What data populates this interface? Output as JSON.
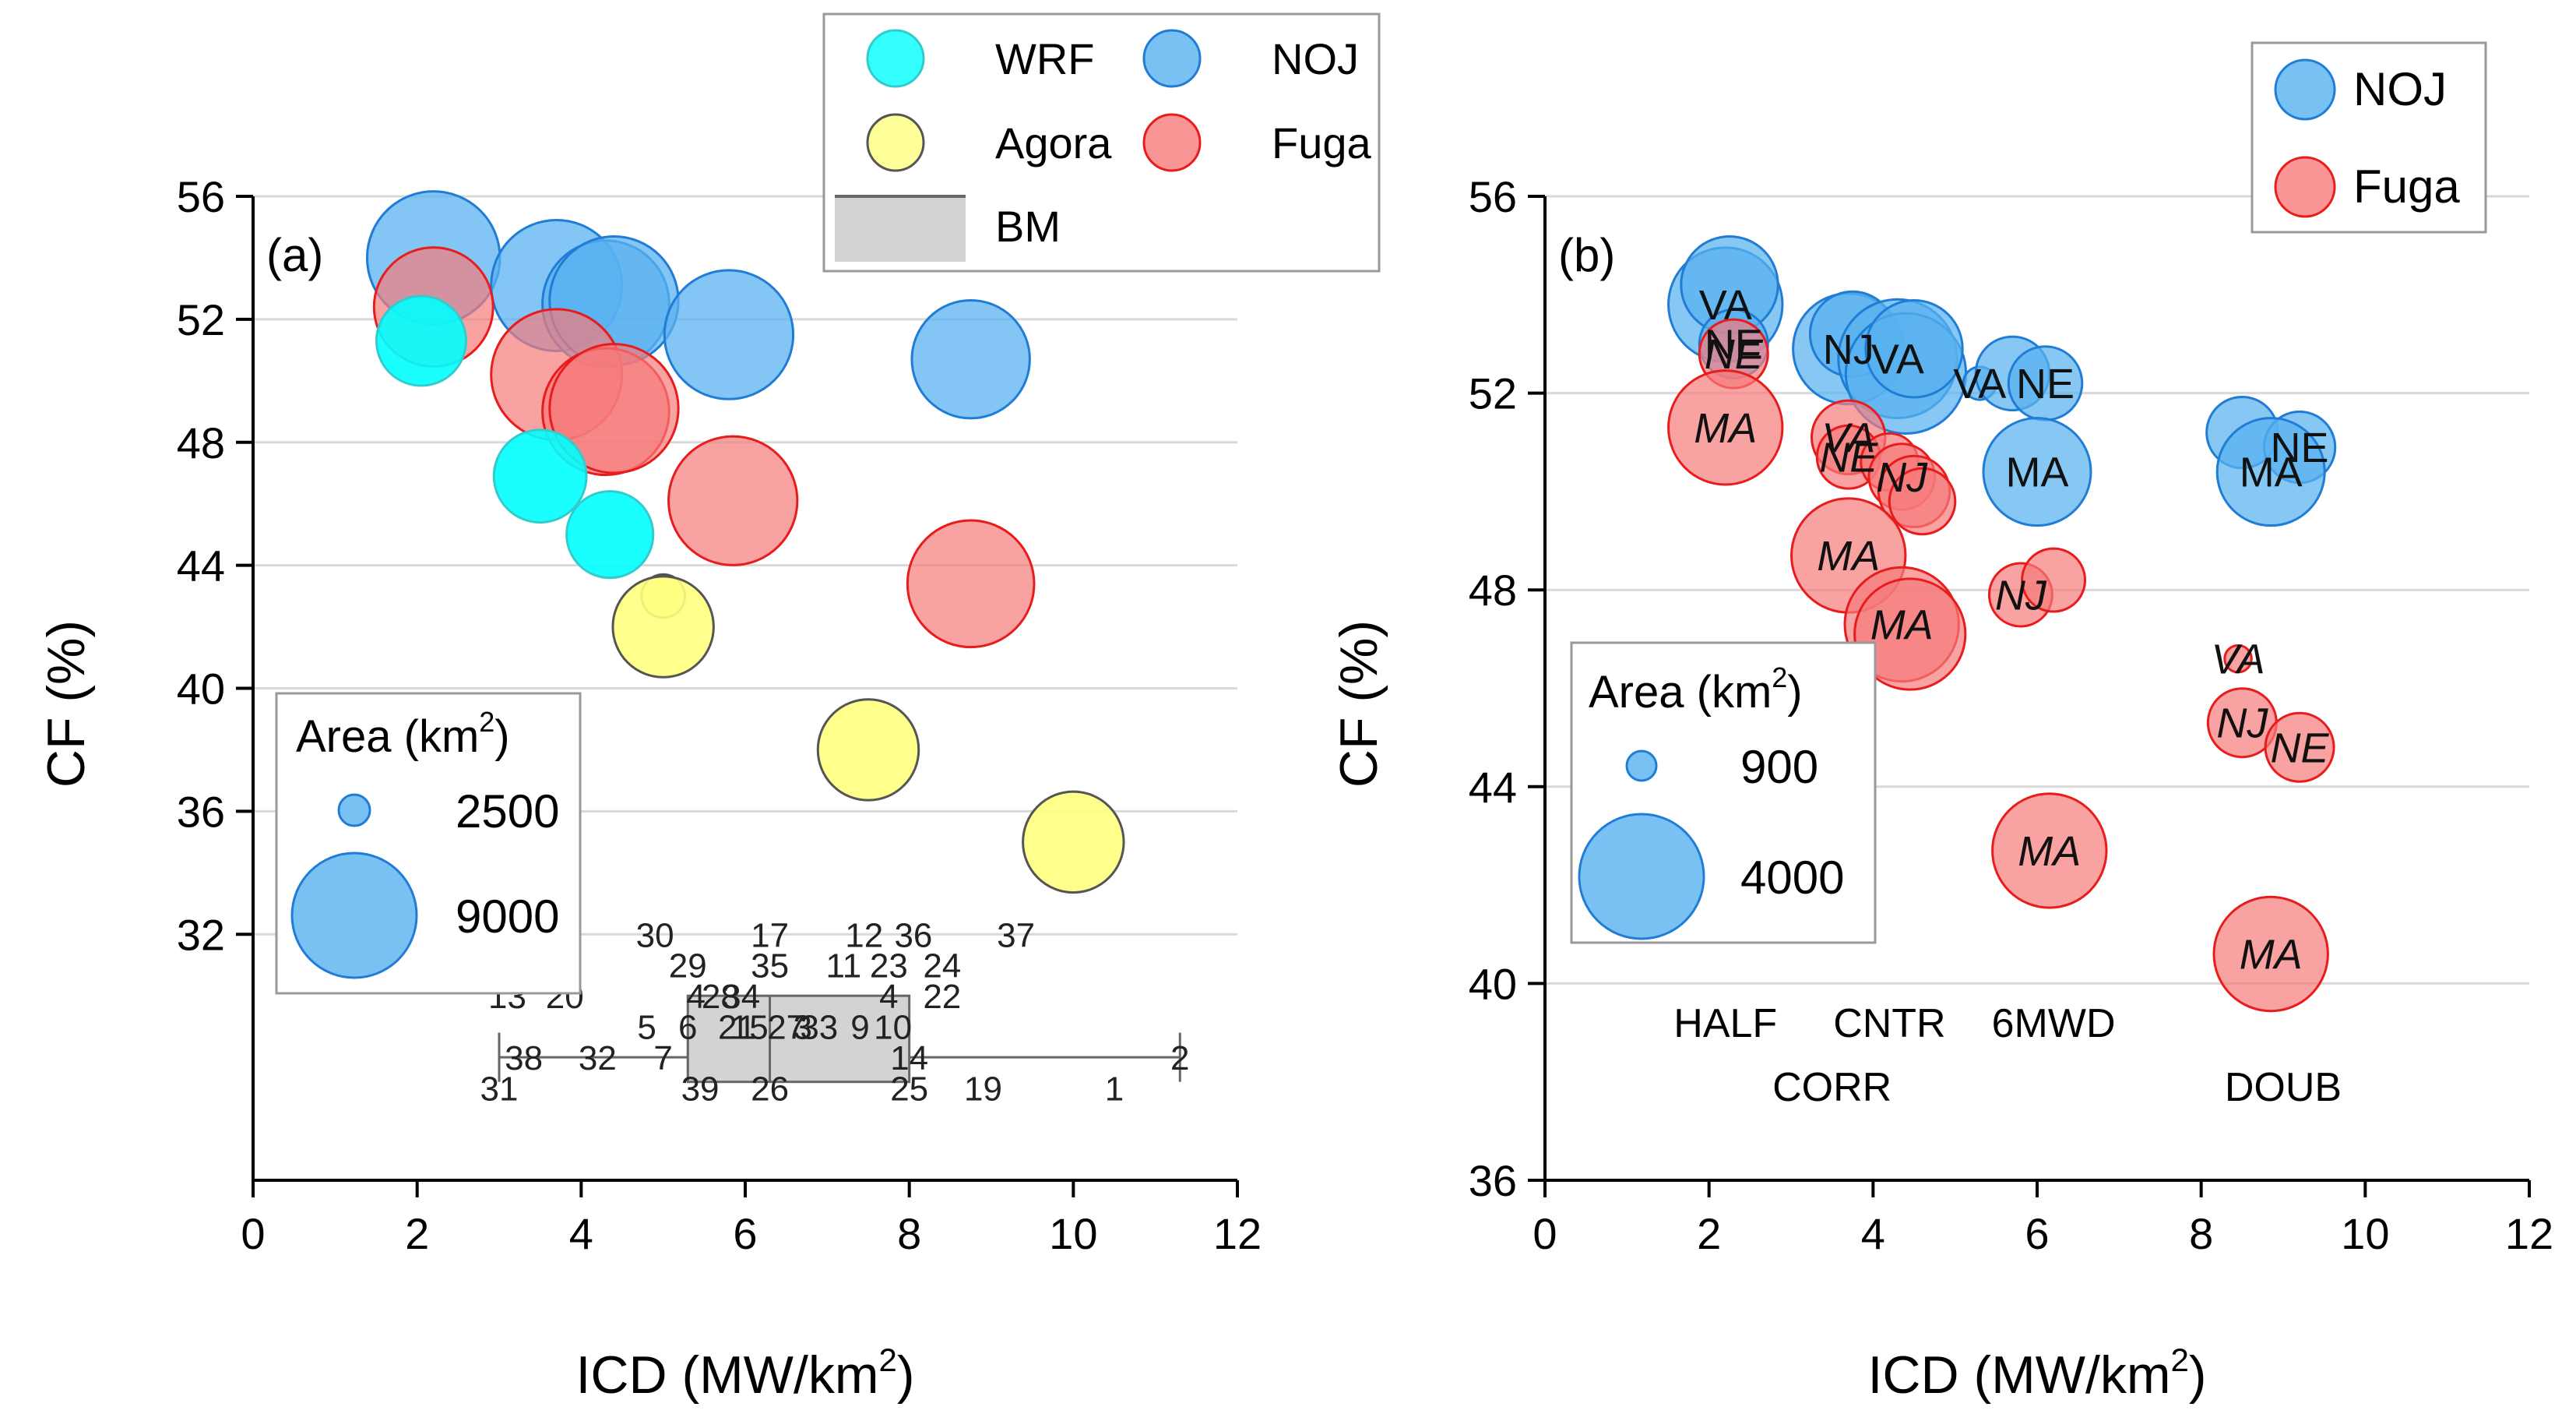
{
  "chart_data": [
    {
      "panel": "a",
      "type": "scatter",
      "panel_label": "(a)",
      "xlabel": "ICD (MW/km",
      "xlabel_sup": "2",
      "xlabel_end": ")",
      "ylabel": "CF (%)",
      "xlim": [
        0,
        12
      ],
      "ylim": [
        24,
        56
      ],
      "xticks": [
        0,
        2,
        4,
        6,
        8,
        10,
        12
      ],
      "yticks": [
        32,
        36,
        40,
        44,
        48,
        52,
        56
      ],
      "grid": true,
      "legend": {
        "placement": "top-center",
        "entries": [
          {
            "label": "WRF",
            "color": "#00FFFF",
            "stroke": "#33CCCC",
            "kind": "circle"
          },
          {
            "label": "NOJ",
            "color": "#59B2F0",
            "stroke": "#1F7DD6",
            "kind": "circle"
          },
          {
            "label": "Agora",
            "color": "#FFFF80",
            "stroke": "#555555",
            "kind": "circle"
          },
          {
            "label": "Fuga",
            "color": "#F77A7A",
            "stroke": "#E81C1C",
            "kind": "circle"
          },
          {
            "label": "BM",
            "color": "#D3D3D3",
            "stroke": "#666666",
            "kind": "box"
          }
        ]
      },
      "size_legend": {
        "title": "Area (km",
        "title_sup": "2",
        "title_end": ")",
        "small": "2500",
        "large": "9000",
        "placement": "lower-left"
      },
      "series": [
        {
          "name": "NOJ",
          "color": "#59B2F0",
          "stroke": "#1F7DD6",
          "opacity": 0.75,
          "points": [
            {
              "x": 2.2,
              "y": 54.0,
              "area": 6600
            },
            {
              "x": 3.7,
              "y": 53.1,
              "area": 6400
            },
            {
              "x": 4.3,
              "y": 52.5,
              "area": 6000
            },
            {
              "x": 4.4,
              "y": 52.6,
              "area": 6200
            },
            {
              "x": 5.8,
              "y": 51.5,
              "area": 6200
            },
            {
              "x": 8.75,
              "y": 50.7,
              "area": 5200
            }
          ]
        },
        {
          "name": "Fuga",
          "color": "#F77A7A",
          "stroke": "#E81C1C",
          "opacity": 0.7,
          "points": [
            {
              "x": 2.2,
              "y": 52.4,
              "area": 5300
            },
            {
              "x": 3.7,
              "y": 50.2,
              "area": 6400
            },
            {
              "x": 4.3,
              "y": 49.0,
              "area": 6000
            },
            {
              "x": 4.4,
              "y": 49.1,
              "area": 6200
            },
            {
              "x": 5.85,
              "y": 46.1,
              "area": 6200
            },
            {
              "x": 8.75,
              "y": 43.4,
              "area": 6000
            }
          ]
        },
        {
          "name": "WRF",
          "color": "#00FFFF",
          "stroke": "#33CCCC",
          "opacity": 0.9,
          "points": [
            {
              "x": 2.05,
              "y": 51.3,
              "area": 3000
            },
            {
              "x": 3.5,
              "y": 46.9,
              "area": 3200
            },
            {
              "x": 4.35,
              "y": 45.0,
              "area": 2800
            }
          ]
        },
        {
          "name": "Agora",
          "color": "#FFFF80",
          "stroke": "#555555",
          "opacity": 0.9,
          "points": [
            {
              "x": 5.0,
              "y": 43.0,
              "area": 700
            },
            {
              "x": 5.0,
              "y": 42.0,
              "area": 3800
            },
            {
              "x": 7.5,
              "y": 38.0,
              "area": 3800
            },
            {
              "x": 10.0,
              "y": 35.0,
              "area": 3800
            }
          ]
        }
      ],
      "benchmark_box": {
        "min": 3.0,
        "q1": 5.3,
        "median": 6.3,
        "q3": 8.0,
        "max": 11.3,
        "y_low": 27.2,
        "y_high": 28.8,
        "y_whisker": 27.7
      },
      "benchmark_labels": [
        {
          "text": "30",
          "x": 4.9,
          "y": 32.0
        },
        {
          "text": "17",
          "x": 6.3,
          "y": 32.0
        },
        {
          "text": "12",
          "x": 7.45,
          "y": 32.0
        },
        {
          "text": "36",
          "x": 8.05,
          "y": 32.0
        },
        {
          "text": "37",
          "x": 9.3,
          "y": 32.0
        },
        {
          "text": "29",
          "x": 5.3,
          "y": 31.0
        },
        {
          "text": "35",
          "x": 6.3,
          "y": 31.0
        },
        {
          "text": "11",
          "x": 7.2,
          "y": 31.0
        },
        {
          "text": "23",
          "x": 7.75,
          "y": 31.0
        },
        {
          "text": "24",
          "x": 8.4,
          "y": 31.0
        },
        {
          "text": "13",
          "x": 3.1,
          "y": 30.0
        },
        {
          "text": "20",
          "x": 3.8,
          "y": 30.0
        },
        {
          "text": "4",
          "x": 5.4,
          "y": 30.0
        },
        {
          "text": "28",
          "x": 5.7,
          "y": 30.0
        },
        {
          "text": "34",
          "x": 5.95,
          "y": 30.0
        },
        {
          "text": "4",
          "x": 7.75,
          "y": 30.0
        },
        {
          "text": "22",
          "x": 8.4,
          "y": 30.0
        },
        {
          "text": "5",
          "x": 4.8,
          "y": 29.0
        },
        {
          "text": "6",
          "x": 5.3,
          "y": 29.0
        },
        {
          "text": "21",
          "x": 5.9,
          "y": 29.0
        },
        {
          "text": "15",
          "x": 6.05,
          "y": 29.0
        },
        {
          "text": "27",
          "x": 6.5,
          "y": 29.0
        },
        {
          "text": "3",
          "x": 6.7,
          "y": 29.0
        },
        {
          "text": "33",
          "x": 6.9,
          "y": 29.0
        },
        {
          "text": "9",
          "x": 7.4,
          "y": 29.0
        },
        {
          "text": "10",
          "x": 7.8,
          "y": 29.0
        },
        {
          "text": "38",
          "x": 3.3,
          "y": 28.0
        },
        {
          "text": "32",
          "x": 4.2,
          "y": 28.0
        },
        {
          "text": "7",
          "x": 5.0,
          "y": 28.0
        },
        {
          "text": "14",
          "x": 8.0,
          "y": 28.0
        },
        {
          "text": "2",
          "x": 11.3,
          "y": 28.0
        },
        {
          "text": "31",
          "x": 3.0,
          "y": 27.0
        },
        {
          "text": "39",
          "x": 5.45,
          "y": 27.0
        },
        {
          "text": "26",
          "x": 6.3,
          "y": 27.0
        },
        {
          "text": "25",
          "x": 8.0,
          "y": 27.0
        },
        {
          "text": "19",
          "x": 8.9,
          "y": 27.0
        },
        {
          "text": "1",
          "x": 10.5,
          "y": 27.0
        }
      ]
    },
    {
      "panel": "b",
      "type": "scatter",
      "panel_label": "(b)",
      "xlabel": "ICD (MW/km",
      "xlabel_sup": "2",
      "xlabel_end": ")",
      "ylabel": "CF (%)",
      "xlim": [
        0,
        12
      ],
      "ylim": [
        36,
        56
      ],
      "xticks": [
        0,
        2,
        4,
        6,
        8,
        10,
        12
      ],
      "yticks": [
        36,
        40,
        44,
        48,
        52,
        56
      ],
      "grid": true,
      "legend": {
        "placement": "top-right",
        "entries": [
          {
            "label": "NOJ",
            "color": "#59B2F0",
            "stroke": "#1F7DD6",
            "kind": "circle"
          },
          {
            "label": "Fuga",
            "color": "#F77A7A",
            "stroke": "#E81C1C",
            "kind": "circle"
          }
        ]
      },
      "size_legend": {
        "title": "Area (km",
        "title_sup": "2",
        "title_end": ")",
        "small": "900",
        "large": "4000",
        "placement": "lower-left"
      },
      "series": [
        {
          "name": "NOJ",
          "color": "#59B2F0",
          "stroke": "#1F7DD6",
          "opacity": 0.72,
          "points": [
            {
              "x": 2.2,
              "y": 53.8,
              "area": 3600,
              "label": "VA",
              "italic": false
            },
            {
              "x": 2.25,
              "y": 54.2,
              "area": 2600,
              "label": "",
              "italic": false
            },
            {
              "x": 2.3,
              "y": 53.0,
              "area": 1300,
              "label": "NE",
              "italic": false
            },
            {
              "x": 3.7,
              "y": 52.9,
              "area": 3400,
              "label": "NJ",
              "italic": false
            },
            {
              "x": 3.75,
              "y": 53.2,
              "area": 2000,
              "label": "",
              "italic": false
            },
            {
              "x": 4.3,
              "y": 52.7,
              "area": 3900,
              "label": "VA",
              "italic": false
            },
            {
              "x": 4.4,
              "y": 52.4,
              "area": 4000,
              "label": "",
              "italic": false
            },
            {
              "x": 4.5,
              "y": 52.9,
              "area": 2600,
              "label": "",
              "italic": false
            },
            {
              "x": 5.3,
              "y": 52.2,
              "area": 300,
              "label": "VA",
              "italic": false
            },
            {
              "x": 5.7,
              "y": 52.4,
              "area": 1500,
              "label": "",
              "italic": false
            },
            {
              "x": 6.1,
              "y": 52.2,
              "area": 1500,
              "label": "NE",
              "italic": false
            },
            {
              "x": 6.0,
              "y": 50.4,
              "area": 3200,
              "label": "MA",
              "italic": false
            },
            {
              "x": 8.5,
              "y": 51.2,
              "area": 1400,
              "label": "",
              "italic": false
            },
            {
              "x": 9.2,
              "y": 50.9,
              "area": 1400,
              "label": "NE",
              "italic": false
            },
            {
              "x": 8.85,
              "y": 50.4,
              "area": 3200,
              "label": "MA",
              "italic": false
            }
          ]
        },
        {
          "name": "Fuga",
          "color": "#F77A7A",
          "stroke": "#E81C1C",
          "opacity": 0.7,
          "points": [
            {
              "x": 2.3,
              "y": 52.8,
              "area": 1300,
              "label": "NE",
              "italic": true
            },
            {
              "x": 2.2,
              "y": 51.3,
              "area": 3600,
              "label": "MA",
              "italic": true
            },
            {
              "x": 3.7,
              "y": 51.1,
              "area": 1500,
              "label": "VA",
              "italic": true
            },
            {
              "x": 3.7,
              "y": 50.7,
              "area": 1100,
              "label": "NE",
              "italic": true
            },
            {
              "x": 4.2,
              "y": 50.6,
              "area": 900,
              "label": "",
              "italic": true
            },
            {
              "x": 4.35,
              "y": 50.3,
              "area": 1200,
              "label": "NJ",
              "italic": true
            },
            {
              "x": 4.5,
              "y": 50.0,
              "area": 1400,
              "label": "",
              "italic": true
            },
            {
              "x": 4.6,
              "y": 49.8,
              "area": 1200,
              "label": "",
              "italic": true
            },
            {
              "x": 3.7,
              "y": 48.7,
              "area": 3600,
              "label": "MA",
              "italic": true
            },
            {
              "x": 4.35,
              "y": 47.3,
              "area": 3600,
              "label": "MA",
              "italic": true
            },
            {
              "x": 4.45,
              "y": 47.1,
              "area": 3400,
              "label": "",
              "italic": true
            },
            {
              "x": 5.8,
              "y": 47.9,
              "area": 1100,
              "label": "NJ",
              "italic": true
            },
            {
              "x": 6.2,
              "y": 48.2,
              "area": 1100,
              "label": "",
              "italic": true
            },
            {
              "x": 8.45,
              "y": 46.6,
              "area": 200,
              "label": "VA",
              "italic": true
            },
            {
              "x": 8.5,
              "y": 45.3,
              "area": 1300,
              "label": "NJ",
              "italic": true
            },
            {
              "x": 9.2,
              "y": 44.8,
              "area": 1300,
              "label": "NE",
              "italic": true
            },
            {
              "x": 6.15,
              "y": 42.7,
              "area": 3600,
              "label": "MA",
              "italic": true
            },
            {
              "x": 8.85,
              "y": 40.6,
              "area": 3600,
              "label": "MA",
              "italic": true
            }
          ]
        }
      ],
      "annotations": [
        {
          "text": "HALF",
          "x": 2.2,
          "y": 39.2
        },
        {
          "text": "CNTR",
          "x": 4.2,
          "y": 39.2
        },
        {
          "text": "6MWD",
          "x": 6.2,
          "y": 39.2
        },
        {
          "text": "CORR",
          "x": 3.5,
          "y": 37.9
        },
        {
          "text": "DOUB",
          "x": 9.0,
          "y": 37.9
        }
      ]
    }
  ]
}
